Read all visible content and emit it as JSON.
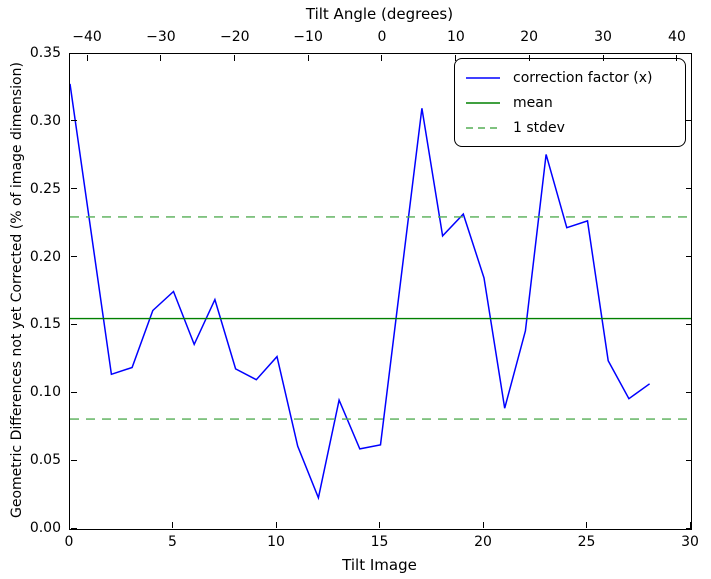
{
  "chart_data": {
    "type": "line",
    "title": "Tilt Angle (degrees)",
    "top_axis": {
      "label": "Tilt Angle (degrees)",
      "ticks": [
        {
          "label": "−40",
          "pos_pct": 2.9
        },
        {
          "label": "−30",
          "pos_pct": 14.8
        },
        {
          "label": "−20",
          "pos_pct": 26.7
        },
        {
          "label": "−10",
          "pos_pct": 38.5
        },
        {
          "label": "0",
          "pos_pct": 50.4
        },
        {
          "label": "10",
          "pos_pct": 62.3
        },
        {
          "label": "20",
          "pos_pct": 74.1
        },
        {
          "label": "30",
          "pos_pct": 86.0
        },
        {
          "label": "40",
          "pos_pct": 97.9
        }
      ]
    },
    "xlabel": "Tilt Image",
    "ylabel": "Geometric Differences not yet Corrected (% of image dimension)",
    "xlim": [
      0,
      30
    ],
    "ylim": [
      0,
      0.35
    ],
    "x_ticks": [
      {
        "label": "0",
        "value": 0
      },
      {
        "label": "5",
        "value": 5
      },
      {
        "label": "10",
        "value": 10
      },
      {
        "label": "15",
        "value": 15
      },
      {
        "label": "20",
        "value": 20
      },
      {
        "label": "25",
        "value": 25
      },
      {
        "label": "30",
        "value": 30
      }
    ],
    "y_ticks": [
      {
        "label": "0.00",
        "value": 0.0
      },
      {
        "label": "0.05",
        "value": 0.05
      },
      {
        "label": "0.10",
        "value": 0.1
      },
      {
        "label": "0.15",
        "value": 0.15
      },
      {
        "label": "0.20",
        "value": 0.2
      },
      {
        "label": "0.25",
        "value": 0.25
      },
      {
        "label": "0.30",
        "value": 0.3
      },
      {
        "label": "0.35",
        "value": 0.35
      }
    ],
    "x": [
      0,
      1,
      2,
      3,
      4,
      5,
      6,
      7,
      8,
      9,
      10,
      11,
      12,
      13,
      14,
      15,
      16,
      17,
      18,
      19,
      20,
      21,
      22,
      23,
      24,
      25,
      26,
      27,
      28
    ],
    "series": [
      {
        "name": "correction factor (x)",
        "kind": "line",
        "color": "#0000ff",
        "dash": "solid",
        "values": [
          0.328,
          0.221,
          0.114,
          0.119,
          0.161,
          0.175,
          0.136,
          0.169,
          0.118,
          0.11,
          0.127,
          0.061,
          0.023,
          0.095,
          0.059,
          0.062,
          0.186,
          0.31,
          0.216,
          0.232,
          0.185,
          0.089,
          0.146,
          0.276,
          0.222,
          0.227,
          0.124,
          0.096,
          0.107
        ]
      },
      {
        "name": "mean",
        "kind": "hline",
        "color": "#008000",
        "dash": "solid",
        "y": [
          0.155
        ]
      },
      {
        "name": "1 stdev",
        "kind": "hline",
        "color": "#55ae55",
        "dash": "dashed",
        "y": [
          0.081,
          0.23
        ]
      }
    ],
    "legend": {
      "position": "upper right",
      "items": [
        {
          "label": "correction factor (x)",
          "color": "#0000ff",
          "dash": "solid"
        },
        {
          "label": "mean",
          "color": "#008000",
          "dash": "solid"
        },
        {
          "label": "1 stdev",
          "color": "#55ae55",
          "dash": "dashed"
        }
      ]
    },
    "grid": false,
    "background": "#ffffff"
  }
}
